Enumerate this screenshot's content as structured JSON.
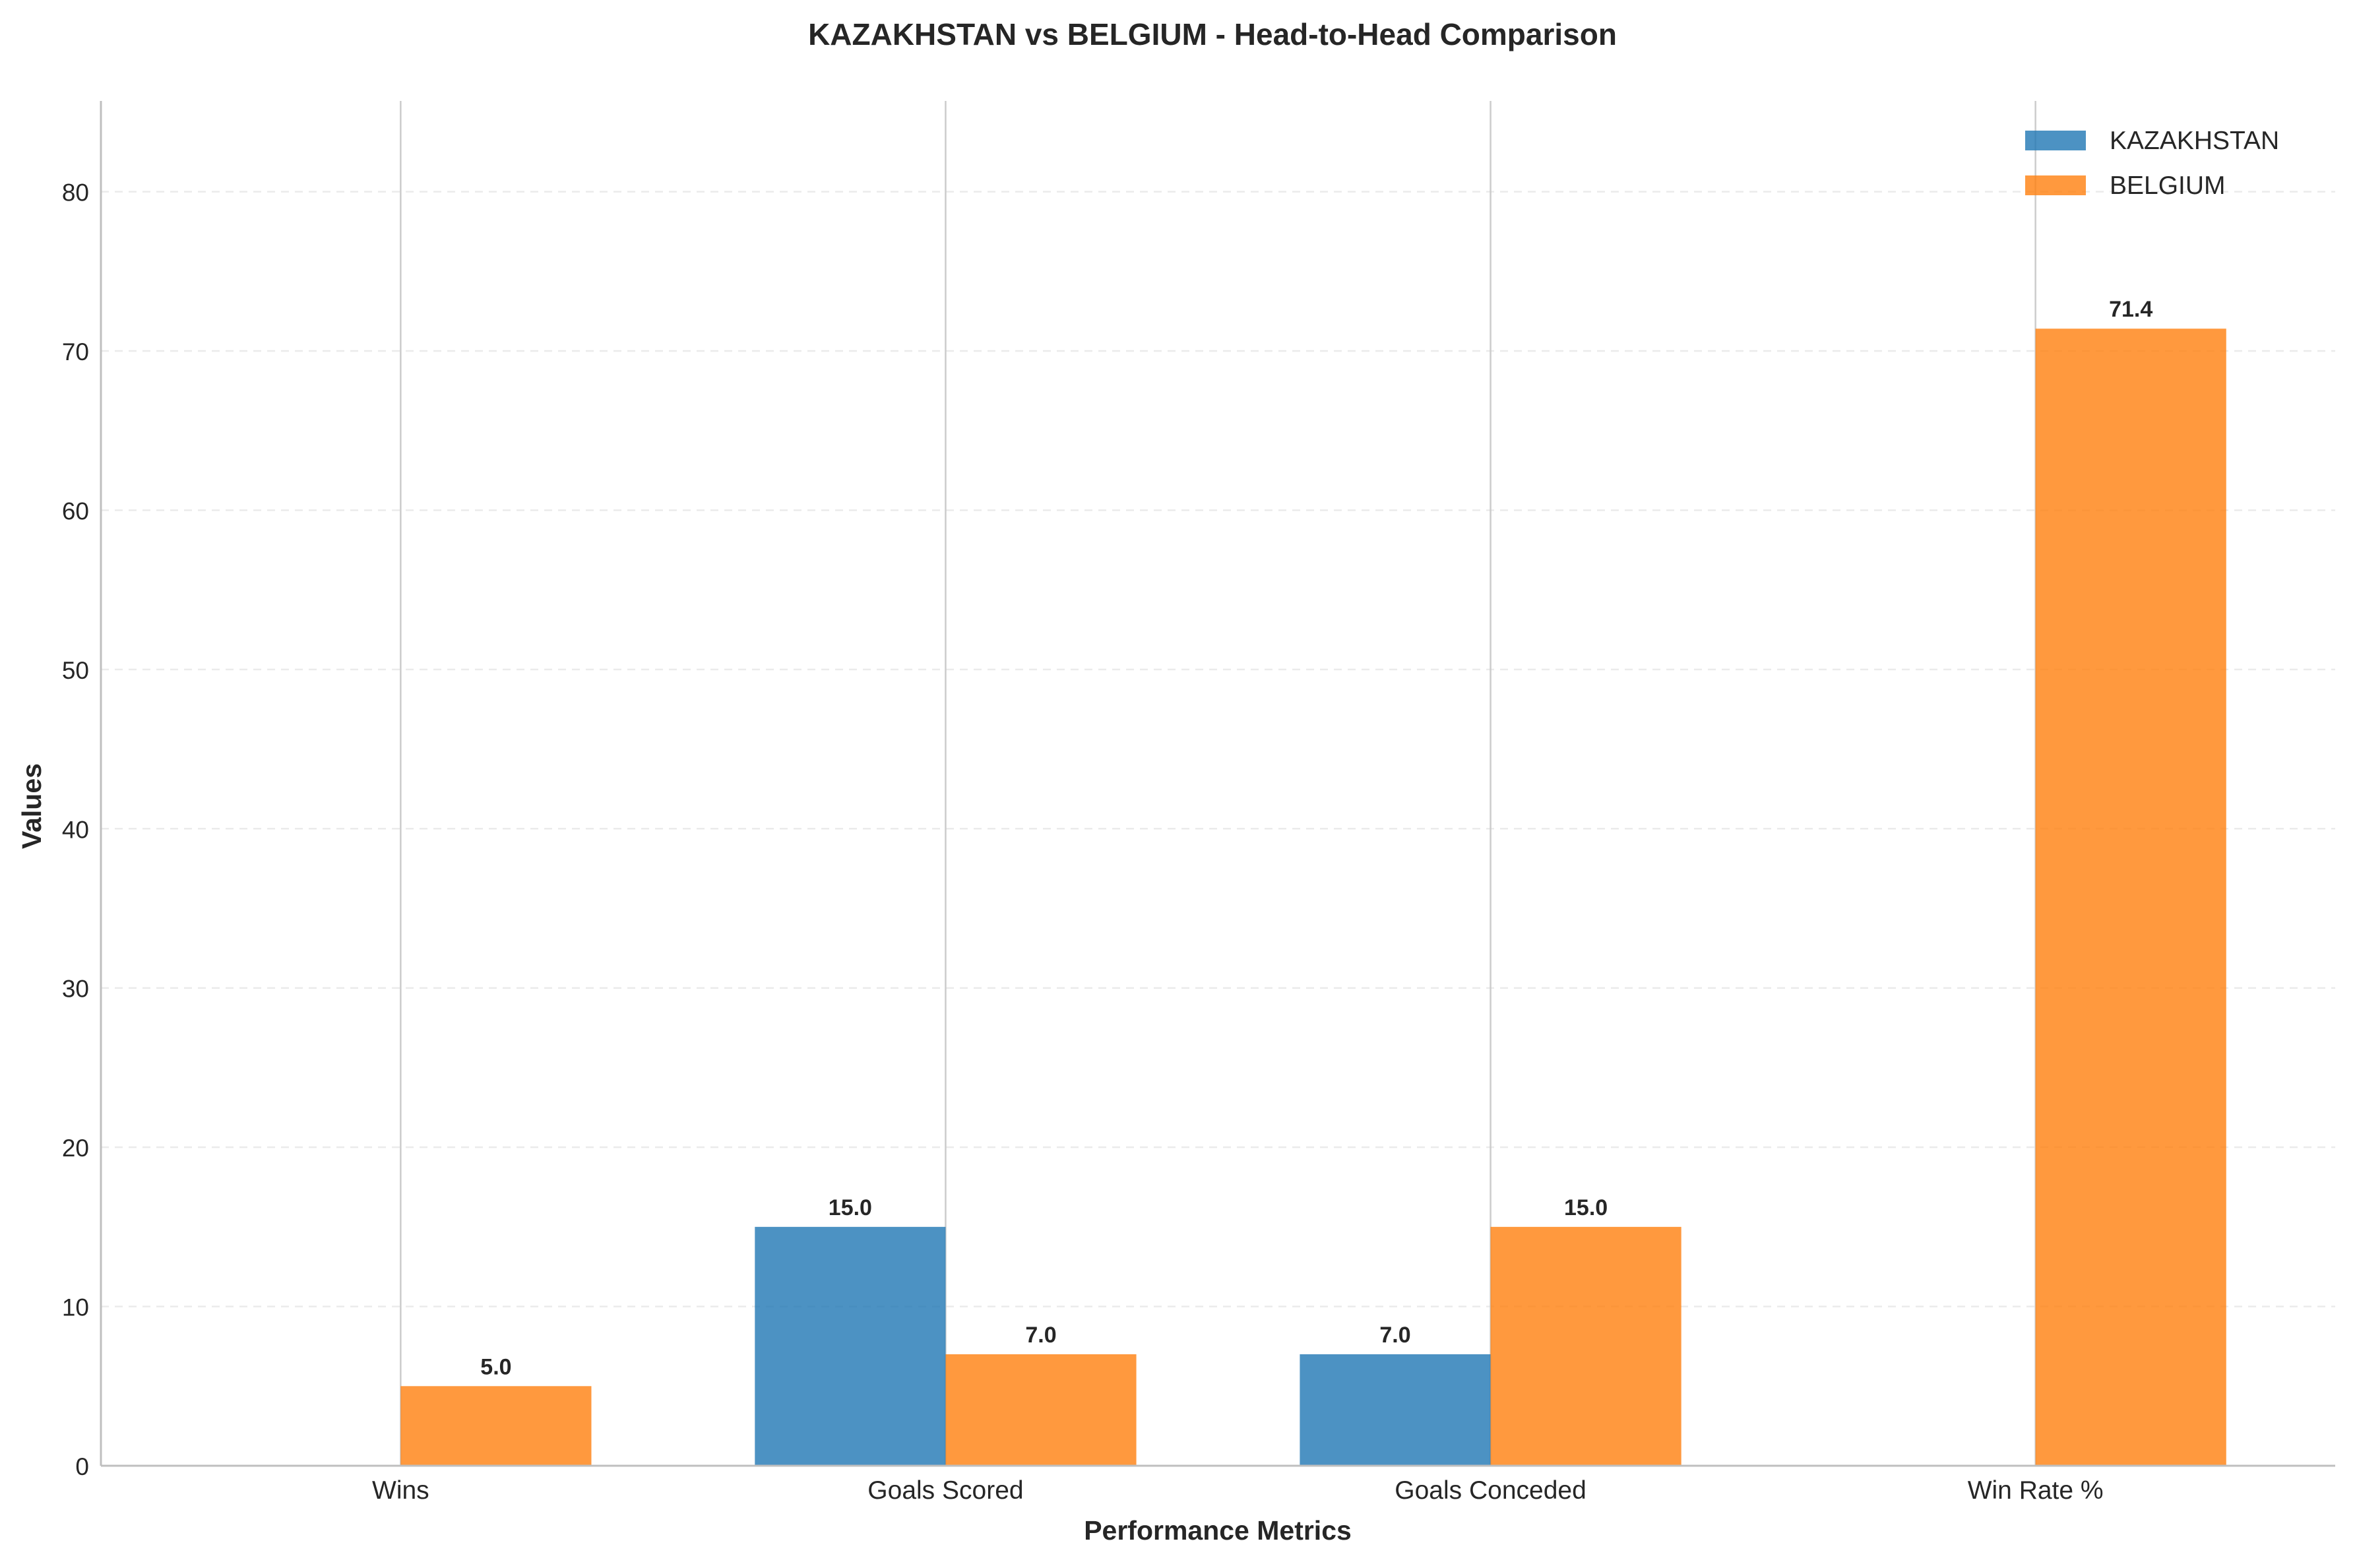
{
  "chart_data": {
    "type": "bar",
    "title": "KAZAKHSTAN vs BELGIUM - Head-to-Head Comparison",
    "xlabel": "Performance Metrics",
    "ylabel": "Values",
    "categories": [
      "Wins",
      "Goals Scored",
      "Goals Conceded",
      "Win Rate %"
    ],
    "series": [
      {
        "name": "KAZAKHSTAN",
        "color": "#1f77b4",
        "values": [
          0,
          15,
          7,
          0
        ],
        "labels": [
          "",
          "15.0",
          "7.0",
          ""
        ]
      },
      {
        "name": "BELGIUM",
        "color": "#ff7f0e",
        "values": [
          5,
          7,
          15,
          71.4
        ],
        "labels": [
          "5.0",
          "7.0",
          "15.0",
          "71.4"
        ]
      }
    ],
    "ylim": [
      0,
      85.7
    ],
    "yticks": [
      0,
      10,
      20,
      30,
      40,
      50,
      60,
      70,
      80
    ],
    "ytick_labels": [
      "0",
      "10",
      "20",
      "30",
      "40",
      "50",
      "60",
      "70",
      "80"
    ],
    "grid": {
      "y": true,
      "y_style": "dashed",
      "x": true,
      "x_style": "solid"
    },
    "legend_position": "top-right"
  }
}
